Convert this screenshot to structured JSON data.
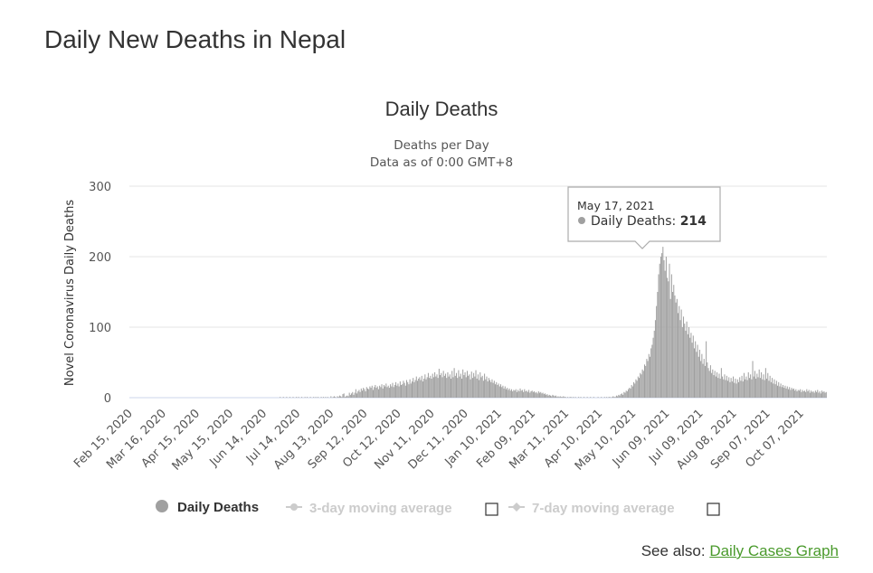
{
  "page": {
    "title": "Daily New Deaths in Nepal",
    "see_also_prefix": "See also: ",
    "see_also_link": "Daily Cases Graph"
  },
  "chart_data": {
    "type": "bar",
    "title": "Daily Deaths",
    "subtitle_lines": [
      "Deaths per Day",
      "Data as of 0:00 GMT+8"
    ],
    "ylabel": "Novel Coronavirus Daily Deaths",
    "xlabel": "",
    "ylim": [
      0,
      300
    ],
    "yticks": [
      0,
      100,
      200,
      300
    ],
    "x_tick_labels": [
      "Feb 15, 2020",
      "Mar 16, 2020",
      "Apr 15, 2020",
      "May 15, 2020",
      "Jun 14, 2020",
      "Jul 14, 2020",
      "Aug 13, 2020",
      "Sep 12, 2020",
      "Oct 12, 2020",
      "Nov 11, 2020",
      "Dec 11, 2020",
      "Jan 10, 2021",
      "Feb 09, 2021",
      "Mar 11, 2021",
      "Apr 10, 2021",
      "May 10, 2021",
      "Jun 09, 2021",
      "Jul 09, 2021",
      "Aug 08, 2021",
      "Sep 07, 2021",
      "Oct 07, 2021"
    ],
    "grid": true,
    "bar_color": "#a0a0a0",
    "series": [
      {
        "name": "Daily Deaths",
        "start_date": "2020-01-23",
        "values": [
          0,
          0,
          0,
          0,
          0,
          0,
          0,
          0,
          0,
          0,
          0,
          0,
          0,
          0,
          0,
          0,
          0,
          0,
          0,
          0,
          0,
          0,
          0,
          0,
          0,
          0,
          0,
          0,
          0,
          0,
          0,
          0,
          0,
          0,
          0,
          0,
          0,
          0,
          0,
          0,
          0,
          0,
          0,
          0,
          0,
          0,
          0,
          0,
          0,
          0,
          0,
          0,
          0,
          0,
          0,
          0,
          0,
          0,
          0,
          0,
          0,
          0,
          0,
          0,
          0,
          0,
          0,
          0,
          0,
          0,
          0,
          0,
          0,
          0,
          0,
          0,
          0,
          0,
          0,
          0,
          0,
          0,
          0,
          0,
          0,
          0,
          0,
          0,
          0,
          0,
          0,
          0,
          0,
          0,
          0,
          0,
          0,
          0,
          0,
          0,
          0,
          0,
          0,
          0,
          0,
          0,
          0,
          0,
          0,
          0,
          0,
          0,
          0,
          0,
          0,
          0,
          0,
          0,
          0,
          0,
          0,
          0,
          0,
          0,
          0,
          0,
          0,
          0,
          0,
          0,
          0,
          0,
          0,
          0,
          0,
          0,
          0,
          0,
          0,
          1,
          0,
          0,
          1,
          0,
          0,
          1,
          0,
          0,
          1,
          0,
          0,
          1,
          0,
          0,
          1,
          0,
          1,
          0,
          0,
          1,
          0,
          0,
          1,
          0,
          1,
          0,
          0,
          1,
          0,
          0,
          1,
          0,
          1,
          0,
          1,
          0,
          0,
          1,
          0,
          1,
          0,
          1,
          0,
          1,
          0,
          0,
          2,
          0,
          1,
          2,
          1,
          0,
          2,
          1,
          3,
          2,
          1,
          5,
          6,
          1,
          2,
          3,
          2,
          7,
          4,
          6,
          8,
          4,
          7,
          12,
          6,
          9,
          11,
          8,
          13,
          10,
          14,
          12,
          9,
          15,
          13,
          12,
          16,
          14,
          17,
          11,
          15,
          18,
          14,
          16,
          12,
          17,
          15,
          19,
          13,
          18,
          16,
          20,
          15,
          17,
          14,
          19,
          16,
          21,
          15,
          18,
          22,
          17,
          20,
          16,
          23,
          18,
          19,
          24,
          21,
          17,
          25,
          22,
          19,
          26,
          20,
          23,
          28,
          22,
          25,
          30,
          24,
          27,
          29,
          25,
          31,
          23,
          27,
          33,
          26,
          29,
          35,
          28,
          31,
          27,
          34,
          29,
          36,
          30,
          33,
          28,
          41,
          32,
          35,
          29,
          38,
          31,
          34,
          28,
          36,
          30,
          33,
          27,
          38,
          29,
          42,
          31,
          35,
          28,
          39,
          30,
          34,
          27,
          40,
          32,
          36,
          29,
          38,
          31,
          33,
          26,
          37,
          28,
          35,
          30,
          39,
          27,
          33,
          25,
          36,
          29,
          31,
          24,
          34,
          26,
          30,
          23,
          28,
          25,
          22,
          26,
          21,
          24,
          19,
          22,
          18,
          20,
          16,
          19,
          15,
          17,
          13,
          16,
          12,
          14,
          11,
          13,
          10,
          12,
          9,
          11,
          10,
          12,
          8,
          11,
          9,
          13,
          10,
          11,
          8,
          12,
          9,
          10,
          8,
          11,
          7,
          9,
          10,
          8,
          9,
          7,
          8,
          6,
          9,
          7,
          8,
          6,
          7,
          5,
          6,
          4,
          5,
          3,
          4,
          3,
          2,
          4,
          3,
          2,
          3,
          1,
          2,
          1,
          2,
          1,
          1,
          2,
          1,
          1,
          0,
          1,
          0,
          1,
          1,
          0,
          1,
          0,
          1,
          0,
          0,
          1,
          0,
          1,
          0,
          0,
          1,
          0,
          0,
          1,
          0,
          0,
          1,
          0,
          0,
          1,
          0,
          0,
          0,
          1,
          0,
          0,
          1,
          0,
          0,
          1,
          0,
          1,
          0,
          1,
          1,
          0,
          1,
          2,
          1,
          1,
          3,
          2,
          4,
          3,
          5,
          6,
          4,
          8,
          7,
          10,
          9,
          12,
          14,
          13,
          18,
          16,
          22,
          20,
          26,
          24,
          30,
          28,
          35,
          33,
          40,
          38,
          47,
          45,
          55,
          52,
          62,
          58,
          70,
          75,
          85,
          95,
          110,
          130,
          150,
          175,
          190,
          200,
          205,
          214,
          195,
          180,
          200,
          170,
          165,
          190,
          140,
          175,
          150,
          160,
          145,
          135,
          140,
          120,
          130,
          110,
          125,
          100,
          115,
          105,
          95,
          108,
          90,
          100,
          85,
          92,
          78,
          88,
          70,
          80,
          65,
          75,
          58,
          68,
          52,
          62,
          48,
          55,
          45,
          80,
          50,
          42,
          38,
          46,
          35,
          40,
          32,
          38,
          30,
          36,
          28,
          34,
          27,
          42,
          30,
          26,
          33,
          25,
          31,
          24,
          29,
          22,
          28,
          23,
          30,
          21,
          27,
          20,
          26,
          22,
          29,
          24,
          31,
          23,
          35,
          26,
          30,
          25,
          36,
          28,
          33,
          26,
          52,
          30,
          38,
          27,
          34,
          29,
          40,
          28,
          36,
          26,
          33,
          25,
          42,
          27,
          35,
          24,
          31,
          22,
          28,
          20,
          26,
          19,
          24,
          17,
          22,
          16,
          20,
          15,
          18,
          14,
          17,
          13,
          16,
          12,
          15,
          11,
          14,
          12,
          13,
          10,
          12,
          9,
          11,
          10,
          12,
          8,
          11,
          9,
          10,
          8,
          12,
          9,
          11,
          7,
          10,
          8,
          9,
          7,
          10,
          8,
          11,
          7,
          9,
          6,
          10,
          8,
          9,
          7,
          8
        ]
      }
    ],
    "tooltip": {
      "date": "May 17, 2021",
      "series_label": "Daily Deaths",
      "value": "214"
    },
    "legend": {
      "placement": "bottom",
      "items": [
        {
          "label": "Daily Deaths",
          "enabled": true
        },
        {
          "label": "3-day moving average",
          "enabled": false
        },
        {
          "label": "7-day moving average",
          "enabled": false
        }
      ]
    }
  }
}
